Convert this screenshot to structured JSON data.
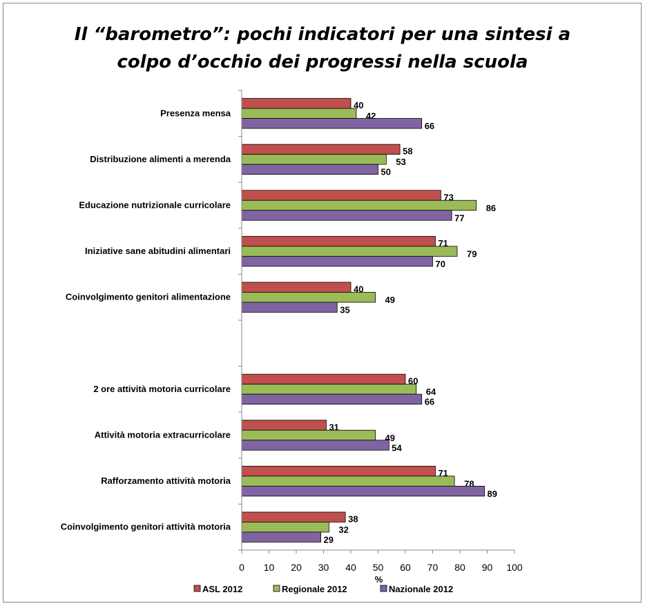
{
  "chart_data": {
    "type": "bar",
    "orientation": "horizontal",
    "title": [
      "Il “barometro”: pochi indicatori per una sintesi a",
      "colpo d’occhio dei progressi nella scuola"
    ],
    "xlabel": "%",
    "ylabel": "",
    "xlim": [
      0,
      100
    ],
    "xticks": [
      0,
      10,
      20,
      30,
      40,
      50,
      60,
      70,
      80,
      90,
      100
    ],
    "grid": false,
    "legend_position": "bottom",
    "categories": [
      "Presenza mensa",
      "Distribuzione alimenti a merenda",
      "Educazione nutrizionale curricolare",
      "Iniziative sane abitudini alimentari",
      "Coinvolgimento genitori alimentazione",
      "",
      "2 ore attività motoria curricolare",
      "Attività motoria extracurricolare",
      "Rafforzamento attività motoria",
      "Coinvolgimento genitori attività motoria"
    ],
    "series": [
      {
        "name": "ASL 2012",
        "color": "#c0504d",
        "values": [
          40,
          58,
          73,
          71,
          40,
          null,
          60,
          31,
          71,
          38
        ]
      },
      {
        "name": "Regionale 2012",
        "color": "#9bbb59",
        "values": [
          42,
          53,
          86,
          79,
          49,
          null,
          64,
          49,
          78,
          32
        ]
      },
      {
        "name": "Nazionale 2012",
        "color": "#8064a2",
        "values": [
          66,
          50,
          77,
          70,
          35,
          null,
          66,
          54,
          89,
          29
        ]
      }
    ]
  }
}
